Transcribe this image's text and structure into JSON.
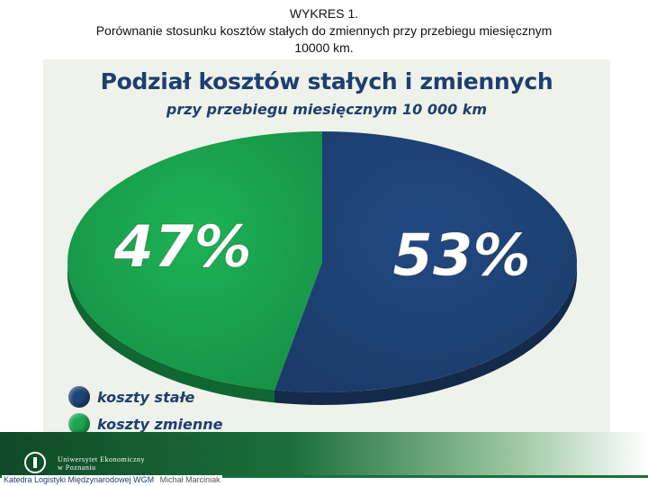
{
  "header": {
    "line1": "WYKRES 1.",
    "line2": "Porównanie stosunku kosztów stałych do zmiennych przy przebiegu miesięcznym",
    "line3": "10000 km."
  },
  "chart_data": {
    "type": "pie",
    "title": "Podział kosztów stałych i zmiennych",
    "subtitle": "przy przebiegu miesięcznym 10 000 km",
    "slices": [
      {
        "label": "koszty stałe",
        "value": 53,
        "display": "53%",
        "color": "#1f4478"
      },
      {
        "label": "koszty zmienne",
        "value": 47,
        "display": "47%",
        "color": "#1aa64f"
      }
    ],
    "legend_position": "bottom-left",
    "background": "#eef2ea"
  },
  "footer": {
    "university_line1": "Uniwersytet Ekonomiczny",
    "university_line2": "w Poznaniu",
    "department": "Katedra Logistyki Międzynarodowej WGM",
    "author": "Michał Marciniak"
  }
}
